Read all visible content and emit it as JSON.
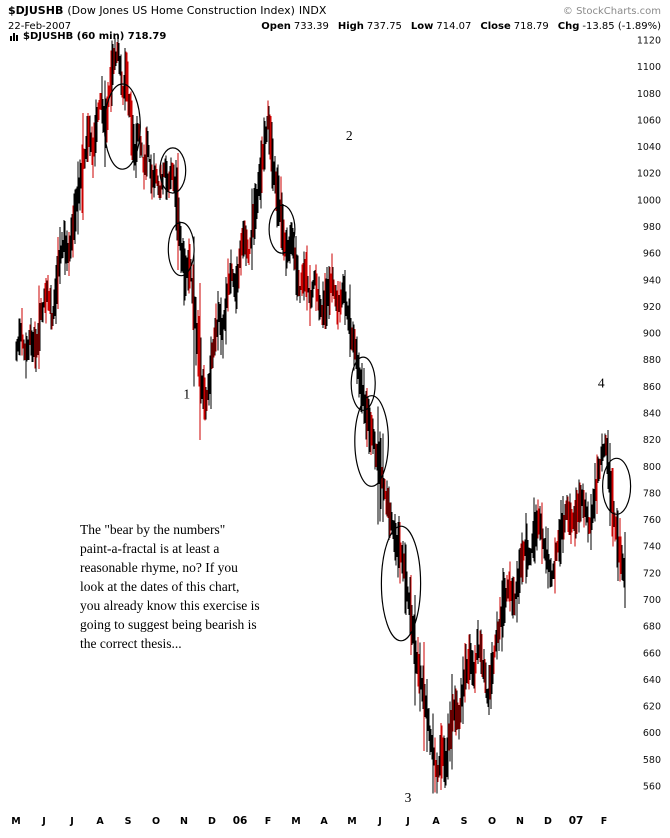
{
  "header": {
    "symbol": "$DJUSHB",
    "index_name": "(Dow Jones US Home Construction Index)",
    "exchange": "INDX",
    "copyright": "© StockCharts.com",
    "date": "22-Feb-2007",
    "quote": {
      "open_label": "Open",
      "open": "733.39",
      "high_label": "High",
      "high": "737.75",
      "low_label": "Low",
      "low": "714.07",
      "close_label": "Close",
      "close": "718.79",
      "chg_label": "Chg",
      "chg": "-13.85 (-1.89%)"
    }
  },
  "chart_data": {
    "type": "candlestick",
    "symbol": "$DJUSHB",
    "timeframe": "60 min",
    "legend": "$DJUSHB (60 min) 718.79",
    "last_price": 718.79,
    "colors": {
      "bar_black": "#000000",
      "bar_red": "#cc0000",
      "annotation": "#000000"
    },
    "x_axis": {
      "labels": [
        "M",
        "J",
        "J",
        "A",
        "S",
        "O",
        "N",
        "D",
        "06",
        "F",
        "M",
        "A",
        "M",
        "J",
        "J",
        "A",
        "S",
        "O",
        "N",
        "D",
        "07",
        "F"
      ],
      "bold_labels": [
        "06",
        "07"
      ],
      "months_range": [
        0,
        22
      ]
    },
    "y_axis": {
      "min": 560,
      "max": 1120,
      "step": 20,
      "ticks": [
        1120,
        1100,
        1080,
        1060,
        1040,
        1020,
        1000,
        980,
        960,
        940,
        920,
        900,
        880,
        860,
        840,
        820,
        800,
        780,
        760,
        740,
        720,
        700,
        680,
        660,
        640,
        620,
        600,
        580,
        560
      ]
    },
    "grid": "off",
    "series_anchors": [
      [
        0,
        885
      ],
      [
        0.2,
        905
      ],
      [
        0.35,
        880
      ],
      [
        0.5,
        900
      ],
      [
        0.7,
        885
      ],
      [
        0.9,
        915
      ],
      [
        1.1,
        930
      ],
      [
        1.3,
        912
      ],
      [
        1.5,
        945
      ],
      [
        1.7,
        970
      ],
      [
        1.85,
        955
      ],
      [
        2,
        975
      ],
      [
        2.2,
        1000
      ],
      [
        2.4,
        1025
      ],
      [
        2.6,
        1050
      ],
      [
        2.75,
        1035
      ],
      [
        2.9,
        1060
      ],
      [
        3.05,
        1075
      ],
      [
        3.2,
        1050
      ],
      [
        3.35,
        1085
      ],
      [
        3.5,
        1105
      ],
      [
        3.65,
        1115
      ],
      [
        3.8,
        1080
      ],
      [
        3.95,
        1095
      ],
      [
        4.1,
        1060
      ],
      [
        4.25,
        1035
      ],
      [
        4.4,
        1055
      ],
      [
        4.55,
        1025
      ],
      [
        4.7,
        1040
      ],
      [
        4.85,
        1015
      ],
      [
        5,
        1022
      ],
      [
        5.15,
        1008
      ],
      [
        5.3,
        1025
      ],
      [
        5.45,
        1010
      ],
      [
        5.6,
        1022
      ],
      [
        5.75,
        1000
      ],
      [
        5.9,
        965
      ],
      [
        6.05,
        940
      ],
      [
        6.2,
        955
      ],
      [
        6.35,
        920
      ],
      [
        6.5,
        890
      ],
      [
        6.65,
        862
      ],
      [
        6.8,
        845
      ],
      [
        6.95,
        872
      ],
      [
        7.1,
        895
      ],
      [
        7.25,
        915
      ],
      [
        7.4,
        900
      ],
      [
        7.55,
        930
      ],
      [
        7.7,
        945
      ],
      [
        7.85,
        930
      ],
      [
        8,
        955
      ],
      [
        8.15,
        975
      ],
      [
        8.3,
        958
      ],
      [
        8.45,
        980
      ],
      [
        8.6,
        1000
      ],
      [
        8.75,
        1020
      ],
      [
        8.9,
        1045
      ],
      [
        9,
        1062
      ],
      [
        9.1,
        1040
      ],
      [
        9.25,
        1015
      ],
      [
        9.4,
        995
      ],
      [
        9.55,
        975
      ],
      [
        9.7,
        958
      ],
      [
        9.85,
        972
      ],
      [
        10,
        950
      ],
      [
        10.15,
        932
      ],
      [
        10.3,
        948
      ],
      [
        10.5,
        925
      ],
      [
        10.7,
        940
      ],
      [
        10.9,
        915
      ],
      [
        11.1,
        928
      ],
      [
        11.3,
        942
      ],
      [
        11.5,
        918
      ],
      [
        11.7,
        932
      ],
      [
        11.9,
        910
      ],
      [
        12.05,
        895
      ],
      [
        12.2,
        875
      ],
      [
        12.35,
        858
      ],
      [
        12.5,
        842
      ],
      [
        12.65,
        828
      ],
      [
        12.8,
        818
      ],
      [
        12.95,
        800
      ],
      [
        13.1,
        788
      ],
      [
        13.25,
        772
      ],
      [
        13.4,
        758
      ],
      [
        13.55,
        745
      ],
      [
        13.7,
        738
      ],
      [
        13.85,
        722
      ],
      [
        14,
        702
      ],
      [
        14.15,
        682
      ],
      [
        14.3,
        658
      ],
      [
        14.45,
        640
      ],
      [
        14.6,
        622
      ],
      [
        14.75,
        602
      ],
      [
        14.9,
        582
      ],
      [
        15.05,
        565
      ],
      [
        15.2,
        588
      ],
      [
        15.35,
        572
      ],
      [
        15.5,
        602
      ],
      [
        15.65,
        622
      ],
      [
        15.8,
        608
      ],
      [
        16,
        638
      ],
      [
        16.2,
        658
      ],
      [
        16.35,
        642
      ],
      [
        16.5,
        668
      ],
      [
        16.7,
        648
      ],
      [
        16.85,
        628
      ],
      [
        17,
        648
      ],
      [
        17.2,
        672
      ],
      [
        17.4,
        695
      ],
      [
        17.6,
        712
      ],
      [
        17.8,
        698
      ],
      [
        18,
        722
      ],
      [
        18.2,
        742
      ],
      [
        18.35,
        728
      ],
      [
        18.5,
        748
      ],
      [
        18.7,
        762
      ],
      [
        18.85,
        742
      ],
      [
        19,
        728
      ],
      [
        19.15,
        715
      ],
      [
        19.3,
        735
      ],
      [
        19.5,
        752
      ],
      [
        19.7,
        768
      ],
      [
        19.85,
        755
      ],
      [
        20,
        762
      ],
      [
        20.2,
        778
      ],
      [
        20.35,
        765
      ],
      [
        20.5,
        752
      ],
      [
        20.65,
        775
      ],
      [
        20.8,
        795
      ],
      [
        20.95,
        812
      ],
      [
        21.05,
        820
      ],
      [
        21.15,
        800
      ],
      [
        21.25,
        785
      ],
      [
        21.35,
        762
      ],
      [
        21.45,
        748
      ],
      [
        21.55,
        735
      ],
      [
        21.65,
        725
      ],
      [
        21.75,
        719
      ]
    ],
    "annotations": {
      "numbers": [
        {
          "label": "1",
          "m": 6.1,
          "p": 851
        },
        {
          "label": "2",
          "m": 11.9,
          "p": 1045
        },
        {
          "label": "3",
          "m": 14,
          "p": 548
        },
        {
          "label": "4",
          "m": 20.9,
          "p": 859
        }
      ],
      "ellipses": [
        {
          "m": 3.8,
          "p": 1055,
          "rm": 0.64,
          "rp": 32
        },
        {
          "m": 5.6,
          "p": 1022,
          "rm": 0.46,
          "rp": 17
        },
        {
          "m": 5.9,
          "p": 963,
          "rm": 0.46,
          "rp": 20
        },
        {
          "m": 9.5,
          "p": 978,
          "rm": 0.46,
          "rp": 18
        },
        {
          "m": 12.4,
          "p": 862,
          "rm": 0.43,
          "rp": 20
        },
        {
          "m": 12.7,
          "p": 819,
          "rm": 0.6,
          "rp": 34
        },
        {
          "m": 13.75,
          "p": 712,
          "rm": 0.7,
          "rp": 43
        },
        {
          "m": 21.45,
          "p": 785,
          "rm": 0.5,
          "rp": 21
        }
      ],
      "note_text": "The \"bear by the numbers\"\npaint-a-fractal is at least a\nreasonable rhyme, no? If you\nlook at the dates of this chart,\nyou already know this exercise is\ngoing to suggest being bearish is\nthe correct thesis..."
    }
  }
}
